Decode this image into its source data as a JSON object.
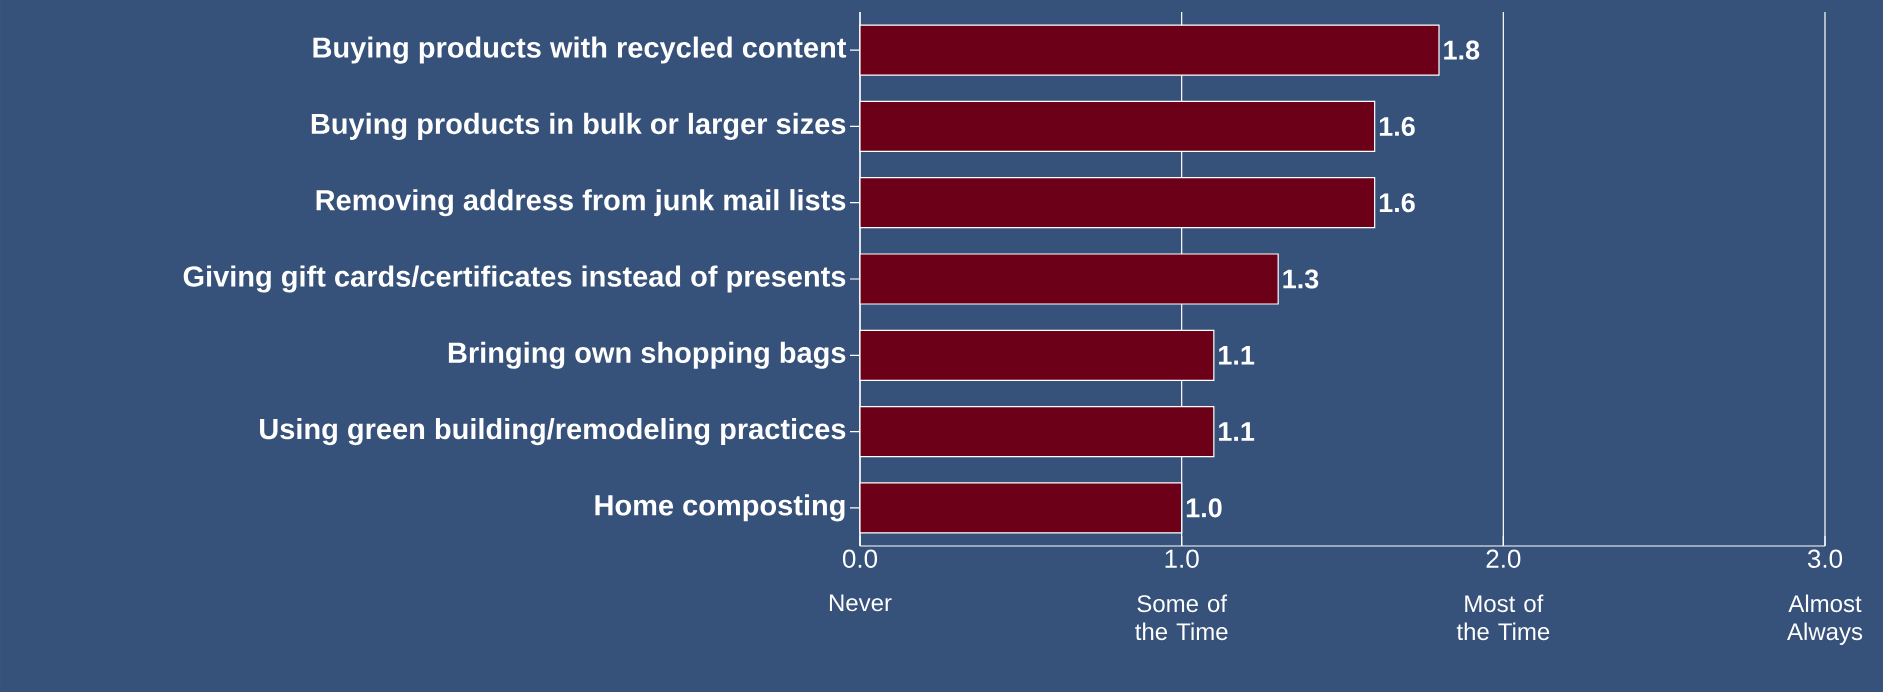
{
  "chart_data": {
    "type": "bar",
    "orientation": "horizontal",
    "categories": [
      "Buying products with recycled content",
      "Buying products in bulk or larger sizes",
      "Removing address from junk mail lists",
      "Giving gift cards/certificates instead of presents",
      "Bringing own shopping bags",
      "Using green building/remodeling practices",
      "Home composting"
    ],
    "values": [
      1.8,
      1.6,
      1.6,
      1.3,
      1.1,
      1.1,
      1.0
    ],
    "value_labels": [
      "1.8",
      "1.6",
      "1.6",
      "1.3",
      "1.1",
      "1.1",
      "1.0"
    ],
    "color": "#6b0018",
    "xlim": [
      0,
      3
    ],
    "xticks": [
      {
        "value": 0,
        "label": "0.0"
      },
      {
        "value": 1,
        "label": "1.0"
      },
      {
        "value": 2,
        "label": "2.0"
      },
      {
        "value": 3,
        "label": "3.0"
      }
    ],
    "annotations": [
      "Never",
      "Some of the Time",
      "Most of the Time",
      "Almost Always"
    ],
    "grid": "x"
  }
}
